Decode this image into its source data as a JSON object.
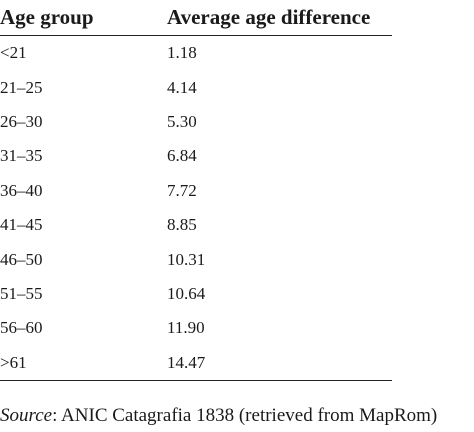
{
  "table": {
    "headers": [
      "Age group",
      "Average age difference"
    ],
    "rows": [
      [
        "<21",
        "1.18"
      ],
      [
        "21–25",
        "4.14"
      ],
      [
        "26–30",
        "5.30"
      ],
      [
        "31–35",
        "6.84"
      ],
      [
        "36–40",
        "7.72"
      ],
      [
        "41–45",
        "8.85"
      ],
      [
        "46–50",
        "10.31"
      ],
      [
        "51–55",
        "10.64"
      ],
      [
        "56–60",
        "11.90"
      ],
      [
        ">61",
        "14.47"
      ]
    ]
  },
  "source": {
    "label": "Source",
    "separator": ": ",
    "text": "ANIC Catagrafia 1838 (retrieved from MapRom)"
  }
}
